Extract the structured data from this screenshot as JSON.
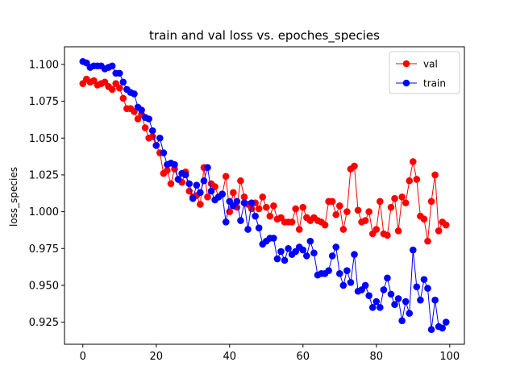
{
  "chart_data": {
    "type": "line",
    "title": "train and val loss vs. epoches_species",
    "xlabel": "",
    "ylabel": "loss_species",
    "xlim": [
      -5,
      104
    ],
    "ylim": [
      0.91,
      1.112
    ],
    "x_ticks": [
      0,
      20,
      40,
      60,
      80,
      100
    ],
    "y_ticks": [
      0.925,
      0.95,
      0.975,
      1.0,
      1.025,
      1.05,
      1.075,
      1.1
    ],
    "y_tick_labels": [
      "0.925",
      "0.950",
      "0.975",
      "1.000",
      "1.025",
      "1.050",
      "1.075",
      "1.100"
    ],
    "legend_position": "top-right",
    "series": [
      {
        "name": "val",
        "color": "#ff0000",
        "marker": "circle",
        "values": [
          1.087,
          1.09,
          1.088,
          1.089,
          1.086,
          1.087,
          1.088,
          1.085,
          1.083,
          1.087,
          1.084,
          1.077,
          1.07,
          1.07,
          1.068,
          1.063,
          1.066,
          1.057,
          1.05,
          1.051,
          1.045,
          1.04,
          1.026,
          1.028,
          1.019,
          1.029,
          1.022,
          1.02,
          1.027,
          1.014,
          1.01,
          1.011,
          1.005,
          1.03,
          1.01,
          1.019,
          1.017,
          1.01,
          1.012,
          1.024,
          1.0,
          1.013,
          1.003,
          1.021,
          1.01,
          1.005,
          1.002,
          1.006,
          1.002,
          1.01,
          1.003,
          0.997,
          1.004,
          0.995,
          0.996,
          0.993,
          0.993,
          0.993,
          1.002,
          0.988,
          1.003,
          0.996,
          0.994,
          0.996,
          0.994,
          0.993,
          0.991,
          1.007,
          1.007,
          0.998,
          1.004,
          0.988,
          1.0,
          1.029,
          1.031,
          1.001,
          0.993,
          0.994,
          1.0,
          0.985,
          0.988,
          1.007,
          0.985,
          0.984,
          1.003,
          1.009,
          0.987,
          1.01,
          1.006,
          1.021,
          1.034,
          1.022,
          0.997,
          0.995,
          0.98,
          1.007,
          1.025,
          0.987,
          0.993,
          0.991
        ]
      },
      {
        "name": "train",
        "color": "#0000ff",
        "marker": "circle",
        "values": [
          1.102,
          1.101,
          1.098,
          1.099,
          1.099,
          1.099,
          1.097,
          1.098,
          1.099,
          1.094,
          1.094,
          1.088,
          1.083,
          1.081,
          1.08,
          1.071,
          1.069,
          1.064,
          1.063,
          1.055,
          1.045,
          1.05,
          1.04,
          1.032,
          1.033,
          1.032,
          1.022,
          1.026,
          1.025,
          1.019,
          1.009,
          1.018,
          1.013,
          1.021,
          1.03,
          1.014,
          1.008,
          1.01,
          1.012,
          0.993,
          1.007,
          1.004,
          1.007,
          0.994,
          1.006,
          0.988,
          1.006,
          0.997,
          0.989,
          0.978,
          0.98,
          0.982,
          0.982,
          0.968,
          0.973,
          0.967,
          0.975,
          0.971,
          0.973,
          0.976,
          0.974,
          0.97,
          0.98,
          0.972,
          0.957,
          0.958,
          0.958,
          0.96,
          0.97,
          0.976,
          0.958,
          0.95,
          0.96,
          0.952,
          0.971,
          0.946,
          0.947,
          0.95,
          0.943,
          0.935,
          0.939,
          0.935,
          0.947,
          0.955,
          0.944,
          0.937,
          0.941,
          0.926,
          0.939,
          0.931,
          0.974,
          0.949,
          0.94,
          0.954,
          0.948,
          0.92,
          0.94,
          0.922,
          0.921,
          0.925
        ]
      }
    ]
  }
}
